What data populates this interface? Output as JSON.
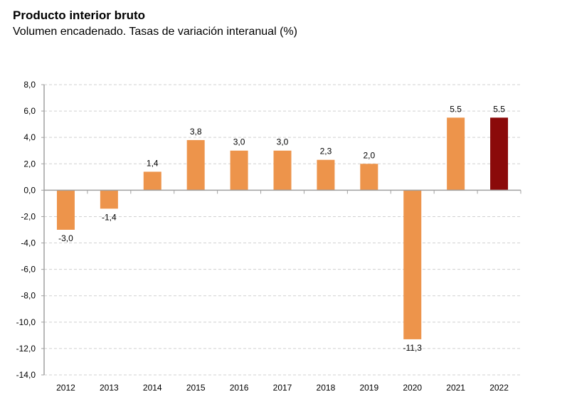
{
  "chart_data": {
    "type": "bar",
    "title": "Producto interior bruto",
    "subtitle": "Volumen encadenado. Tasas de variación interanual (%)",
    "xlabel": "",
    "ylabel": "",
    "categories": [
      "2012",
      "2013",
      "2014",
      "2015",
      "2016",
      "2017",
      "2018",
      "2019",
      "2020",
      "2021",
      "2022"
    ],
    "values": [
      -3.0,
      -1.4,
      1.4,
      3.8,
      3.0,
      3.0,
      2.3,
      2.0,
      -11.3,
      5.5,
      5.5
    ],
    "data_labels": [
      "-3,0",
      "-1,4",
      "1,4",
      "3,8",
      "3,0",
      "3,0",
      "2,3",
      "2,0",
      "-11,3",
      "5.5",
      "5.5"
    ],
    "highlight_index": 10,
    "colors": {
      "bar": "#ED944B",
      "highlight": "#8B0A0A",
      "grid": "#D0D0D0",
      "axis": "#A0A0A0"
    },
    "ylim": [
      -14,
      8
    ],
    "yticks": [
      8,
      6,
      4,
      2,
      0,
      -2,
      -4,
      -6,
      -8,
      -10,
      -12,
      -14
    ],
    "ytick_labels": [
      "8,0",
      "6,0",
      "4,0",
      "2,0",
      "0,0",
      "-2,0",
      "-4,0",
      "-6,0",
      "-8,0",
      "-10,0",
      "-12,0",
      "-14,0"
    ],
    "grid": true,
    "legend": "none"
  }
}
